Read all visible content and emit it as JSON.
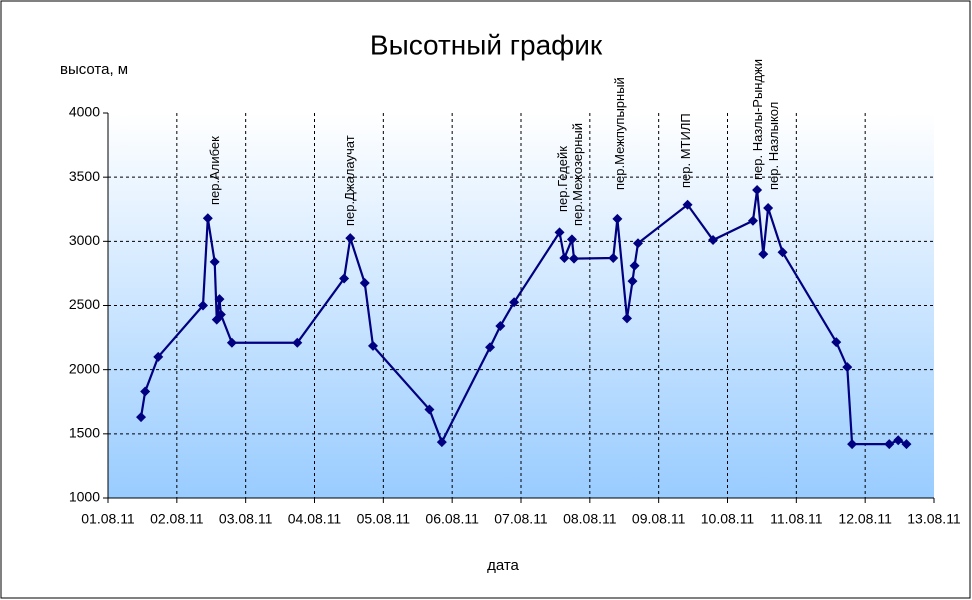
{
  "chart_data": {
    "type": "line",
    "title": "Высотный график",
    "y_label": "высота, м",
    "x_label": "дата",
    "grid": true,
    "xlim": [
      1,
      13
    ],
    "xticks": [
      {
        "value": 1,
        "label": "01.08.11"
      },
      {
        "value": 2,
        "label": "02.08.11"
      },
      {
        "value": 3,
        "label": "03.08.11"
      },
      {
        "value": 4,
        "label": "04.08.11"
      },
      {
        "value": 5,
        "label": "05.08.11"
      },
      {
        "value": 6,
        "label": "06.08.11"
      },
      {
        "value": 7,
        "label": "07.08.11"
      },
      {
        "value": 8,
        "label": "08.08.11"
      },
      {
        "value": 9,
        "label": "09.08.11"
      },
      {
        "value": 10,
        "label": "10.08.11"
      },
      {
        "value": 11,
        "label": "11.08.11"
      },
      {
        "value": 12,
        "label": "12.08.11"
      },
      {
        "value": 13,
        "label": "13.08.11"
      }
    ],
    "ylim": [
      1000,
      4000
    ],
    "yticks": [
      1000,
      1500,
      2000,
      2500,
      3000,
      3500,
      4000
    ],
    "annotations": [
      "пер.Алибек",
      "пер.Джалаучат",
      "пер.Гедейк",
      "пер.Межозерный",
      "пер.Межпупырный",
      "пер. МТИЛП",
      "пер. Назлы-Рынджи",
      "пер. Назлыкол"
    ],
    "series": [
      {
        "color": "#000080",
        "x": [
          1.48,
          1.54,
          1.73,
          2.38,
          2.45,
          2.55,
          2.58,
          2.62,
          2.64,
          2.8,
          3.75,
          4.43,
          4.52,
          4.73,
          4.85,
          5.67,
          5.85,
          6.55,
          6.7,
          6.9,
          7.56,
          7.63,
          7.74,
          7.77,
          8.34,
          8.4,
          8.54,
          8.62,
          8.65,
          8.7,
          9.42,
          9.79,
          10.37,
          10.43,
          10.52,
          10.59,
          10.8,
          11.58,
          11.74,
          11.81,
          12.35,
          12.48,
          12.6
        ],
        "values": [
          1630,
          1830,
          2100,
          2500,
          3180,
          2840,
          2390,
          2550,
          2430,
          2210,
          2210,
          2710,
          3025,
          2675,
          2185,
          1690,
          1435,
          2175,
          2340,
          2525,
          3070,
          2870,
          3015,
          2865,
          2870,
          3175,
          2400,
          2690,
          2810,
          2985,
          3285,
          3010,
          3160,
          3400,
          2900,
          3260,
          2915,
          2215,
          2020,
          1420,
          1420,
          1450,
          1420
        ]
      }
    ]
  }
}
